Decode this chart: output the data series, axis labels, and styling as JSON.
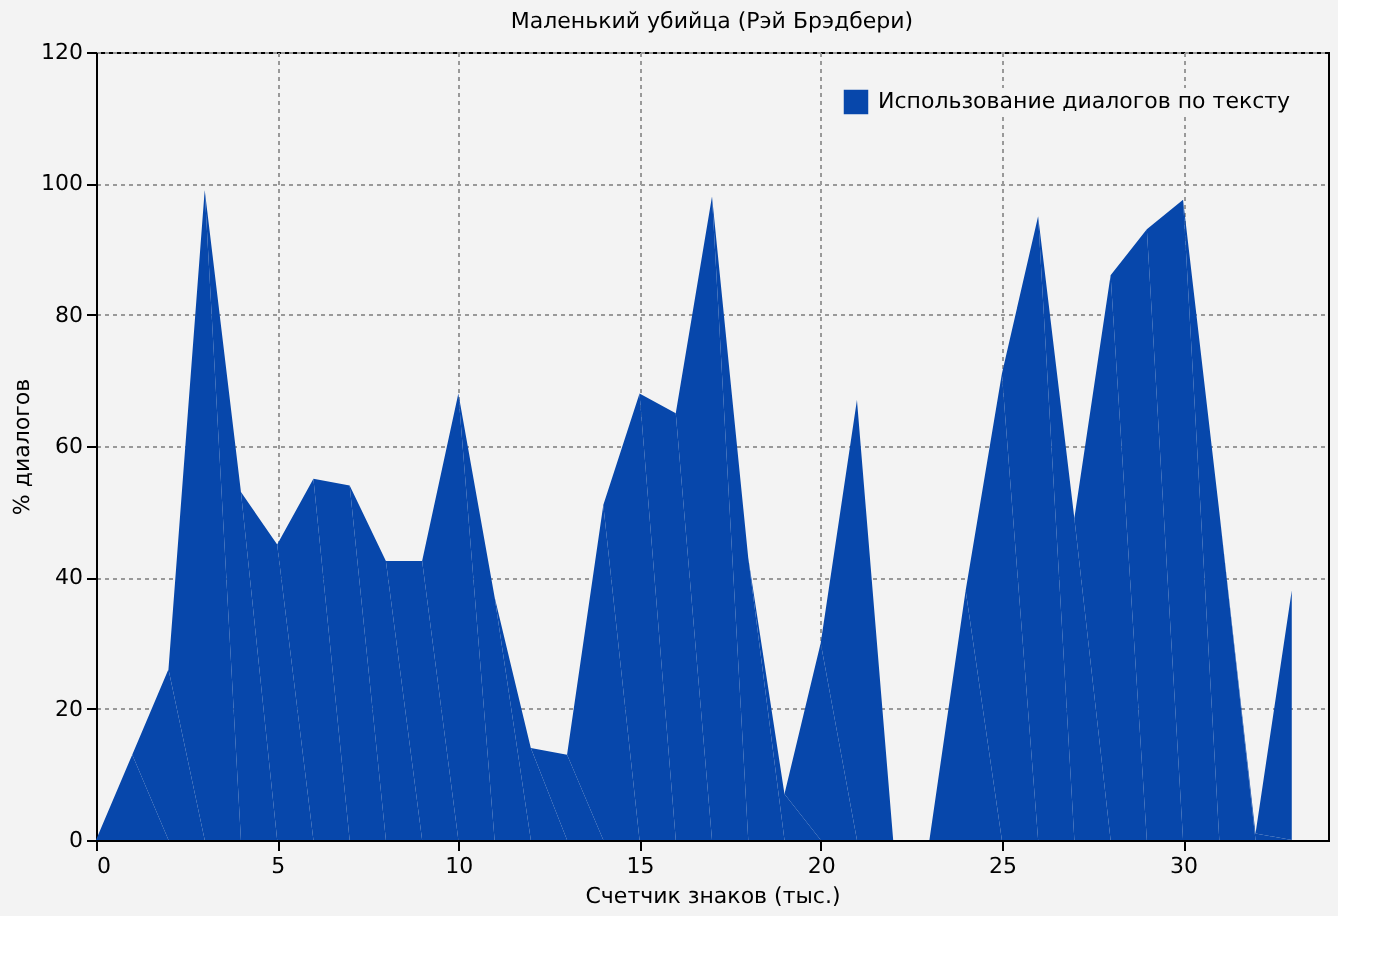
{
  "chart_data": {
    "type": "area",
    "title": "Маленький убийца (Рэй Брэдбери)",
    "xlabel": "Счетчик знаков (тыс.)",
    "ylabel": "% диалогов",
    "x": [
      0,
      1,
      2,
      3,
      4,
      5,
      6,
      7,
      8,
      9,
      10,
      11,
      12,
      13,
      14,
      15,
      16,
      17,
      18,
      19,
      20,
      21,
      22,
      23,
      24,
      25,
      26,
      27,
      28,
      29,
      30,
      31,
      32,
      33
    ],
    "series": [
      {
        "name": "Использование диалогов по тексту",
        "color": "#0747ab",
        "values": [
          0,
          13,
          26,
          99,
          53,
          45,
          55,
          54,
          42.5,
          42.5,
          68,
          37,
          14,
          13,
          51,
          68,
          65,
          98,
          43,
          7,
          30,
          67,
          0,
          0,
          38,
          71,
          95,
          49,
          86,
          93,
          97.5,
          50,
          1,
          38
        ]
      }
    ],
    "xlim": [
      0,
      34
    ],
    "xticks": [
      0,
      5,
      10,
      15,
      20,
      25,
      30
    ],
    "ylim": [
      0,
      120
    ],
    "yticks": [
      0,
      20,
      40,
      60,
      80,
      100,
      120
    ],
    "grid": true,
    "legend": "top right"
  }
}
